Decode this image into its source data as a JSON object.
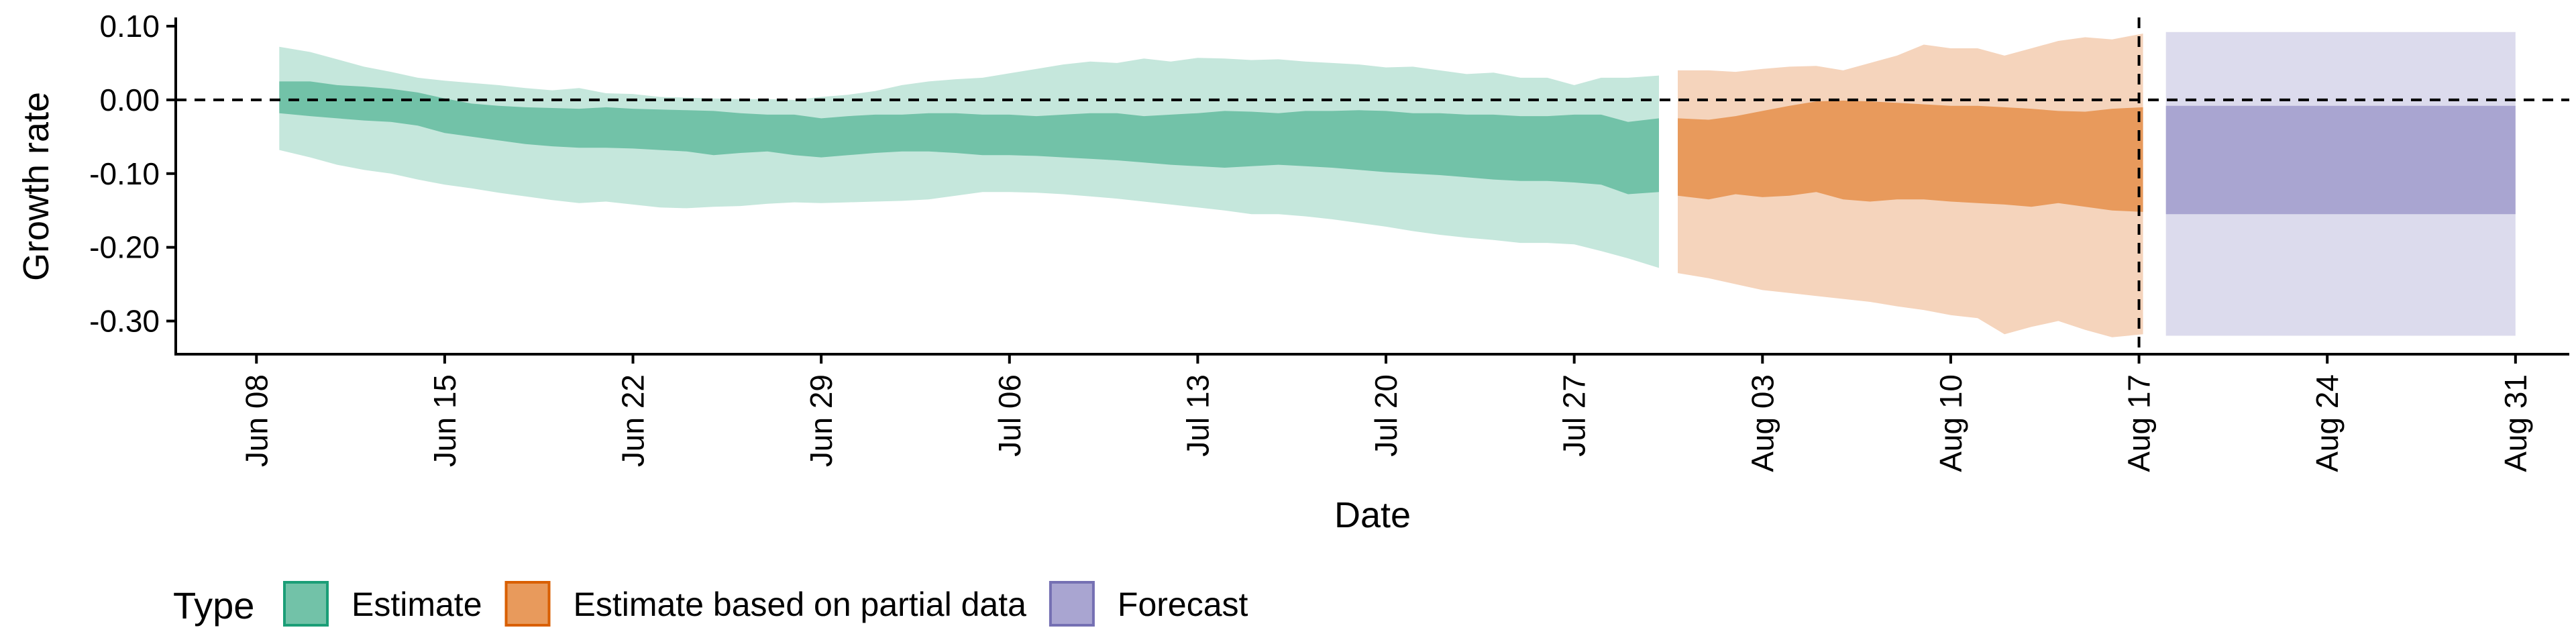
{
  "chart_data": {
    "type": "area",
    "xlabel": "Date",
    "ylabel": "Growth rate",
    "ylim": [
      -0.345,
      0.11
    ],
    "xlim": [
      "2020-06-05",
      "2020-09-02"
    ],
    "grid": false,
    "y_ticks": [
      0.1,
      0.0,
      -0.1,
      -0.2,
      -0.3
    ],
    "y_tick_labels": [
      "0.10",
      "0.00",
      "-0.10",
      "-0.20",
      "-0.30"
    ],
    "x_ticks": [
      "2020-06-08",
      "2020-06-15",
      "2020-06-22",
      "2020-06-29",
      "2020-07-06",
      "2020-07-13",
      "2020-07-20",
      "2020-07-27",
      "2020-08-03",
      "2020-08-10",
      "2020-08-17",
      "2020-08-24",
      "2020-08-31"
    ],
    "x_tick_labels": [
      "Jun 08",
      "Jun 15",
      "Jun 22",
      "Jun 29",
      "Jul 06",
      "Jul 13",
      "Jul 20",
      "Jul 27",
      "Aug 03",
      "Aug 10",
      "Aug 17",
      "Aug 24",
      "Aug 31"
    ],
    "reference_lines": [
      {
        "axis": "y",
        "value": 0.0,
        "style": "dashed"
      },
      {
        "axis": "x",
        "value": "2020-08-17",
        "style": "dashed"
      }
    ],
    "legend": {
      "title": "Type",
      "placement": "bottom-left",
      "items": [
        {
          "label": "Estimate",
          "fill": "#72c2a8",
          "stroke": "#1b9e77"
        },
        {
          "label": "Estimate based on partial data",
          "fill": "#e89a5c",
          "stroke": "#d95f02"
        },
        {
          "label": "Forecast",
          "fill": "#a9a5d1",
          "stroke": "#7570b3"
        }
      ]
    },
    "series": [
      {
        "type_label": "Estimate",
        "outer_color": "#c5e7dc",
        "inner_color": "#72c2a8",
        "dates": [
          "2020-06-09",
          "2020-06-10",
          "2020-06-11",
          "2020-06-12",
          "2020-06-13",
          "2020-06-14",
          "2020-06-15",
          "2020-06-16",
          "2020-06-17",
          "2020-06-18",
          "2020-06-19",
          "2020-06-20",
          "2020-06-21",
          "2020-06-22",
          "2020-06-23",
          "2020-06-24",
          "2020-06-25",
          "2020-06-26",
          "2020-06-27",
          "2020-06-28",
          "2020-06-29",
          "2020-06-30",
          "2020-07-01",
          "2020-07-02",
          "2020-07-03",
          "2020-07-04",
          "2020-07-05",
          "2020-07-06",
          "2020-07-07",
          "2020-07-08",
          "2020-07-09",
          "2020-07-10",
          "2020-07-11",
          "2020-07-12",
          "2020-07-13",
          "2020-07-14",
          "2020-07-15",
          "2020-07-16",
          "2020-07-17",
          "2020-07-18",
          "2020-07-19",
          "2020-07-20",
          "2020-07-21",
          "2020-07-22",
          "2020-07-23",
          "2020-07-24",
          "2020-07-25",
          "2020-07-26",
          "2020-07-27",
          "2020-07-28",
          "2020-07-29",
          "2020-07-30"
        ],
        "outer_upper": [
          0.072,
          0.065,
          0.055,
          0.045,
          0.038,
          0.03,
          0.026,
          0.023,
          0.02,
          0.016,
          0.013,
          0.016,
          0.009,
          0.008,
          0.004,
          0.003,
          0.002,
          0.001,
          0.001,
          0.0,
          0.004,
          0.007,
          0.012,
          0.02,
          0.025,
          0.028,
          0.03,
          0.036,
          0.042,
          0.048,
          0.052,
          0.05,
          0.056,
          0.052,
          0.057,
          0.056,
          0.054,
          0.055,
          0.052,
          0.05,
          0.048,
          0.044,
          0.045,
          0.04,
          0.035,
          0.037,
          0.03,
          0.03,
          0.02,
          0.03,
          0.03,
          0.033
        ],
        "outer_lower": [
          -0.068,
          -0.078,
          -0.088,
          -0.095,
          -0.1,
          -0.108,
          -0.115,
          -0.12,
          -0.126,
          -0.131,
          -0.136,
          -0.14,
          -0.138,
          -0.142,
          -0.146,
          -0.147,
          -0.145,
          -0.144,
          -0.141,
          -0.139,
          -0.14,
          -0.139,
          -0.138,
          -0.137,
          -0.135,
          -0.13,
          -0.125,
          -0.125,
          -0.126,
          -0.128,
          -0.131,
          -0.134,
          -0.138,
          -0.142,
          -0.146,
          -0.15,
          -0.155,
          -0.155,
          -0.158,
          -0.162,
          -0.167,
          -0.172,
          -0.178,
          -0.183,
          -0.187,
          -0.19,
          -0.194,
          -0.194,
          -0.196,
          -0.205,
          -0.215,
          -0.228
        ],
        "inner_upper": [
          0.025,
          0.025,
          0.02,
          0.018,
          0.015,
          0.01,
          0.002,
          -0.005,
          -0.008,
          -0.01,
          -0.011,
          -0.012,
          -0.01,
          -0.012,
          -0.013,
          -0.014,
          -0.015,
          -0.018,
          -0.02,
          -0.02,
          -0.025,
          -0.022,
          -0.02,
          -0.02,
          -0.018,
          -0.018,
          -0.02,
          -0.02,
          -0.022,
          -0.02,
          -0.018,
          -0.018,
          -0.022,
          -0.02,
          -0.018,
          -0.015,
          -0.016,
          -0.018,
          -0.015,
          -0.015,
          -0.014,
          -0.015,
          -0.018,
          -0.018,
          -0.02,
          -0.02,
          -0.022,
          -0.022,
          -0.02,
          -0.02,
          -0.03,
          -0.025
        ],
        "inner_lower": [
          -0.018,
          -0.022,
          -0.025,
          -0.028,
          -0.03,
          -0.035,
          -0.045,
          -0.05,
          -0.055,
          -0.06,
          -0.063,
          -0.065,
          -0.065,
          -0.066,
          -0.068,
          -0.07,
          -0.075,
          -0.072,
          -0.07,
          -0.075,
          -0.078,
          -0.075,
          -0.072,
          -0.07,
          -0.07,
          -0.072,
          -0.075,
          -0.075,
          -0.076,
          -0.078,
          -0.08,
          -0.082,
          -0.085,
          -0.088,
          -0.09,
          -0.092,
          -0.09,
          -0.088,
          -0.09,
          -0.092,
          -0.095,
          -0.098,
          -0.1,
          -0.102,
          -0.105,
          -0.108,
          -0.11,
          -0.11,
          -0.112,
          -0.115,
          -0.128,
          -0.125
        ]
      },
      {
        "type_label": "Estimate based on partial data",
        "outer_color": "#f5d4bc",
        "inner_color": "#e89a5c",
        "dates": [
          "2020-07-31",
          "2020-08-01",
          "2020-08-02",
          "2020-08-03",
          "2020-08-04",
          "2020-08-05",
          "2020-08-06",
          "2020-08-07",
          "2020-08-08",
          "2020-08-09",
          "2020-08-10",
          "2020-08-11",
          "2020-08-12",
          "2020-08-13",
          "2020-08-14",
          "2020-08-15",
          "2020-08-16",
          "2020-08-17"
        ],
        "outer_upper": [
          0.04,
          0.04,
          0.038,
          0.042,
          0.045,
          0.046,
          0.04,
          0.05,
          0.06,
          0.075,
          0.07,
          0.07,
          0.06,
          0.07,
          0.08,
          0.085,
          0.082,
          0.09
        ],
        "outer_lower": [
          -0.235,
          -0.242,
          -0.25,
          -0.258,
          -0.262,
          -0.266,
          -0.27,
          -0.274,
          -0.28,
          -0.285,
          -0.292,
          -0.296,
          -0.318,
          -0.308,
          -0.3,
          -0.312,
          -0.322,
          -0.318
        ],
        "inner_upper": [
          -0.025,
          -0.027,
          -0.022,
          -0.015,
          -0.008,
          -0.002,
          -0.001,
          -0.002,
          -0.004,
          -0.006,
          -0.008,
          -0.008,
          -0.01,
          -0.012,
          -0.015,
          -0.016,
          -0.012,
          -0.01
        ],
        "inner_lower": [
          -0.13,
          -0.135,
          -0.128,
          -0.132,
          -0.13,
          -0.125,
          -0.135,
          -0.138,
          -0.135,
          -0.135,
          -0.138,
          -0.14,
          -0.142,
          -0.145,
          -0.14,
          -0.145,
          -0.15,
          -0.152
        ]
      },
      {
        "type_label": "Forecast",
        "outer_color": "#dcdbed",
        "inner_color": "#a9a5d1",
        "dates": [
          "2020-08-18",
          "2020-08-31"
        ],
        "outer_upper": [
          0.092,
          0.092
        ],
        "outer_lower": [
          -0.32,
          -0.32
        ],
        "inner_upper": [
          -0.008,
          -0.008
        ],
        "inner_lower": [
          -0.155,
          -0.155
        ]
      }
    ]
  }
}
